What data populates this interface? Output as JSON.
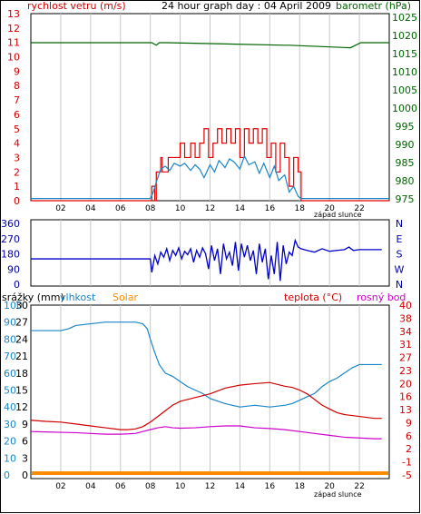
{
  "colors": {
    "wind": "#e00000",
    "gust_avg": "#1a86c8",
    "pressure": "#006400",
    "direction": "#0000c8",
    "humidity": "#1a86c8",
    "solar": "#ff8c00",
    "temperature": "#d00000",
    "dewpoint": "#cc00cc",
    "grid": "#c8c8c8",
    "axis_red": "#d00000",
    "axis_green": "#006400",
    "axis_blue": "#0000aa"
  },
  "chart_data": [
    {
      "type": "line",
      "title": "24 hour graph day : 04 April 2009",
      "left_label": "rychlost vetru (m/s)",
      "right_label": "barometr (hPa)",
      "x_ticks": [
        "02",
        "04",
        "06",
        "08",
        "10",
        "12",
        "14",
        "16",
        "18",
        "20",
        "22"
      ],
      "x_note": "západ slunce",
      "x_range": [
        0,
        24
      ],
      "y_left_ticks": [
        0,
        1,
        2,
        3,
        4,
        5,
        6,
        7,
        8,
        9,
        10,
        11,
        12,
        13
      ],
      "y_left_range": [
        0,
        13
      ],
      "y_right_ticks": [
        975,
        980,
        985,
        990,
        995,
        1000,
        1005,
        1010,
        1015,
        1020,
        1025
      ],
      "y_right_range": [
        974.5,
        1026
      ],
      "series": [
        {
          "key": "pressure",
          "axis": "right",
          "x": [
            0,
            8.1,
            8.4,
            8.6,
            8.9,
            9.1,
            17,
            17.3,
            21.4,
            22.1,
            24
          ],
          "y": [
            1018,
            1018,
            1017.3,
            1018,
            1018,
            1018,
            1017.3,
            1017.3,
            1016.6,
            1018,
            1018
          ]
        },
        {
          "key": "wind",
          "axis": "left",
          "step": true,
          "x": [
            0,
            8.0,
            8.1,
            8.3,
            8.4,
            8.7,
            8.8,
            9.2,
            9.6,
            10.0,
            10.3,
            10.7,
            11.0,
            11.3,
            11.6,
            11.9,
            12.2,
            12.5,
            12.8,
            13.1,
            13.4,
            13.7,
            14.0,
            14.3,
            14.6,
            14.9,
            15.2,
            15.5,
            15.8,
            16.1,
            16.4,
            16.7,
            17.0,
            17.3,
            17.6,
            17.9,
            18.1,
            24
          ],
          "y": [
            0,
            0,
            1,
            0,
            2,
            3,
            2,
            3,
            3,
            4,
            3,
            4,
            3,
            4,
            5,
            3,
            4,
            5,
            4,
            5,
            4,
            5,
            3,
            5,
            4,
            5,
            4,
            5,
            3,
            4,
            2,
            4,
            3,
            1,
            3,
            2,
            0,
            0
          ]
        },
        {
          "key": "gust_avg",
          "axis": "left",
          "x": [
            0,
            8.0,
            8.2,
            8.4,
            8.7,
            9.0,
            9.3,
            9.6,
            10.0,
            10.3,
            10.7,
            11.0,
            11.3,
            11.6,
            12.0,
            12.3,
            12.6,
            13.0,
            13.3,
            13.6,
            14.0,
            14.3,
            14.6,
            15.0,
            15.3,
            15.6,
            16.0,
            16.3,
            16.6,
            17.0,
            17.3,
            17.6,
            17.9,
            18.1,
            24
          ],
          "y": [
            0.15,
            0.15,
            0.6,
            1.3,
            2.2,
            2.4,
            2.1,
            2.6,
            2.4,
            2.6,
            2.1,
            2.5,
            2.2,
            1.6,
            2.5,
            2.0,
            2.8,
            2.3,
            2.9,
            2.7,
            2.2,
            3.1,
            2.5,
            2.7,
            1.9,
            2.6,
            1.6,
            2.4,
            1.4,
            1.8,
            0.6,
            1.0,
            0.3,
            0.15,
            0.15
          ]
        }
      ]
    },
    {
      "type": "scatter",
      "title": "",
      "y_ticks": [
        0,
        90,
        180,
        270,
        360
      ],
      "y_range": [
        0,
        360
      ],
      "y_right_labels": [
        "N",
        "W",
        "S",
        "E",
        "N"
      ],
      "x_range": [
        0,
        24
      ],
      "series": [
        {
          "key": "direction",
          "x": [
            0,
            8.0,
            8.1,
            8.3,
            8.5,
            8.7,
            8.9,
            9.1,
            9.3,
            9.5,
            9.7,
            9.9,
            10.1,
            10.3,
            10.5,
            10.7,
            10.9,
            11.1,
            11.3,
            11.5,
            11.7,
            11.9,
            12.1,
            12.3,
            12.5,
            12.7,
            12.9,
            13.1,
            13.3,
            13.5,
            13.7,
            13.9,
            14.1,
            14.3,
            14.5,
            14.7,
            14.9,
            15.1,
            15.3,
            15.5,
            15.7,
            15.9,
            16.1,
            16.3,
            16.5,
            16.7,
            16.9,
            17.1,
            17.3,
            17.5,
            17.7,
            17.9,
            18.1,
            18.5,
            19.0,
            19.5,
            20.0,
            20.5,
            21.0,
            21.3,
            21.6,
            22.0,
            23.5
          ],
          "y": [
            150,
            150,
            70,
            170,
            120,
            190,
            160,
            210,
            140,
            200,
            170,
            215,
            150,
            195,
            175,
            210,
            130,
            200,
            160,
            215,
            180,
            90,
            230,
            140,
            210,
            60,
            240,
            150,
            190,
            110,
            250,
            80,
            240,
            160,
            230,
            140,
            200,
            60,
            240,
            130,
            210,
            30,
            170,
            60,
            250,
            20,
            230,
            120,
            190,
            170,
            260,
            220,
            210,
            200,
            190,
            210,
            195,
            200,
            205,
            220,
            200,
            205,
            205
          ]
        }
      ]
    },
    {
      "type": "line",
      "left_label_1": "srážky (mm)",
      "left_label_2": "vlhkost",
      "left_label_3": "Solar",
      "right_label_1": "teplota (°C)",
      "right_label_2": "rosný bod",
      "x_ticks": [
        "02",
        "04",
        "06",
        "08",
        "10",
        "12",
        "14",
        "16",
        "18",
        "20",
        "22"
      ],
      "x_note": "západ slunce",
      "x_range": [
        0,
        24
      ],
      "y_left_ticks_rain": [
        0,
        3,
        6,
        9,
        12,
        15,
        18,
        21,
        24,
        27,
        30
      ],
      "y_left_ticks_humidity": [
        0,
        10,
        20,
        30,
        40,
        50,
        60,
        70,
        80,
        90,
        100
      ],
      "y_right_ticks": [
        -5,
        -1,
        2,
        6,
        9,
        13,
        16,
        20,
        23,
        27,
        31,
        34,
        38,
        40
      ],
      "humidity_range": [
        0,
        100
      ],
      "temp_range": [
        -5,
        40
      ],
      "series": [
        {
          "key": "humidity",
          "axis": "humidity",
          "x": [
            0,
            1,
            2,
            2.5,
            3,
            4,
            5,
            6,
            7,
            7.5,
            7.8,
            8.0,
            8.3,
            8.6,
            9.0,
            9.5,
            10,
            10.5,
            11,
            11.5,
            12,
            13,
            14,
            15,
            16,
            17,
            17.5,
            18,
            18.5,
            19,
            19.5,
            20,
            20.5,
            21,
            21.5,
            22,
            22.5,
            23,
            23.5
          ],
          "y": [
            85,
            85,
            85,
            86,
            88,
            89,
            90,
            90,
            90,
            89,
            86,
            80,
            72,
            65,
            60,
            58,
            55,
            52,
            50,
            48,
            45,
            42,
            40,
            41,
            40,
            41,
            42,
            44,
            46,
            48,
            52,
            55,
            57,
            60,
            63,
            65,
            65,
            65,
            65
          ]
        },
        {
          "key": "temperature",
          "axis": "temp",
          "x": [
            0,
            1,
            2,
            3,
            4,
            5,
            6,
            6.5,
            7,
            7.5,
            8,
            8.5,
            9,
            9.5,
            10,
            11,
            12,
            13,
            14,
            15,
            16,
            17,
            17.5,
            18,
            18.5,
            19,
            19.5,
            20,
            20.5,
            21,
            22,
            23,
            23.5
          ],
          "y": [
            9.5,
            9.2,
            9.0,
            8.5,
            8.0,
            7.5,
            7.0,
            7.0,
            7.2,
            7.8,
            9.0,
            10.5,
            12.0,
            13.5,
            14.5,
            15.5,
            16.5,
            18.0,
            18.8,
            19.2,
            19.5,
            18.5,
            18.2,
            17.5,
            16.5,
            15.0,
            13.5,
            12.5,
            11.5,
            11.0,
            10.5,
            10.0,
            10.0
          ]
        },
        {
          "key": "dewpoint",
          "axis": "temp",
          "x": [
            0,
            1,
            2,
            3,
            4,
            5,
            6,
            7,
            7.5,
            8,
            8.5,
            9,
            9.5,
            10,
            11,
            12,
            13,
            14,
            15,
            16,
            17,
            18,
            19,
            20,
            21,
            22,
            23,
            23.5
          ],
          "y": [
            6.5,
            6.4,
            6.3,
            6.2,
            6.0,
            5.8,
            5.8,
            6.0,
            6.5,
            7.0,
            7.5,
            7.8,
            7.5,
            7.4,
            7.5,
            7.8,
            8.0,
            8.0,
            7.5,
            7.3,
            7.0,
            6.5,
            6.0,
            5.5,
            5.0,
            4.8,
            4.6,
            4.6
          ]
        },
        {
          "key": "solar",
          "axis": "humidity",
          "x": [
            0,
            24
          ],
          "y": [
            0,
            0
          ]
        }
      ]
    }
  ]
}
